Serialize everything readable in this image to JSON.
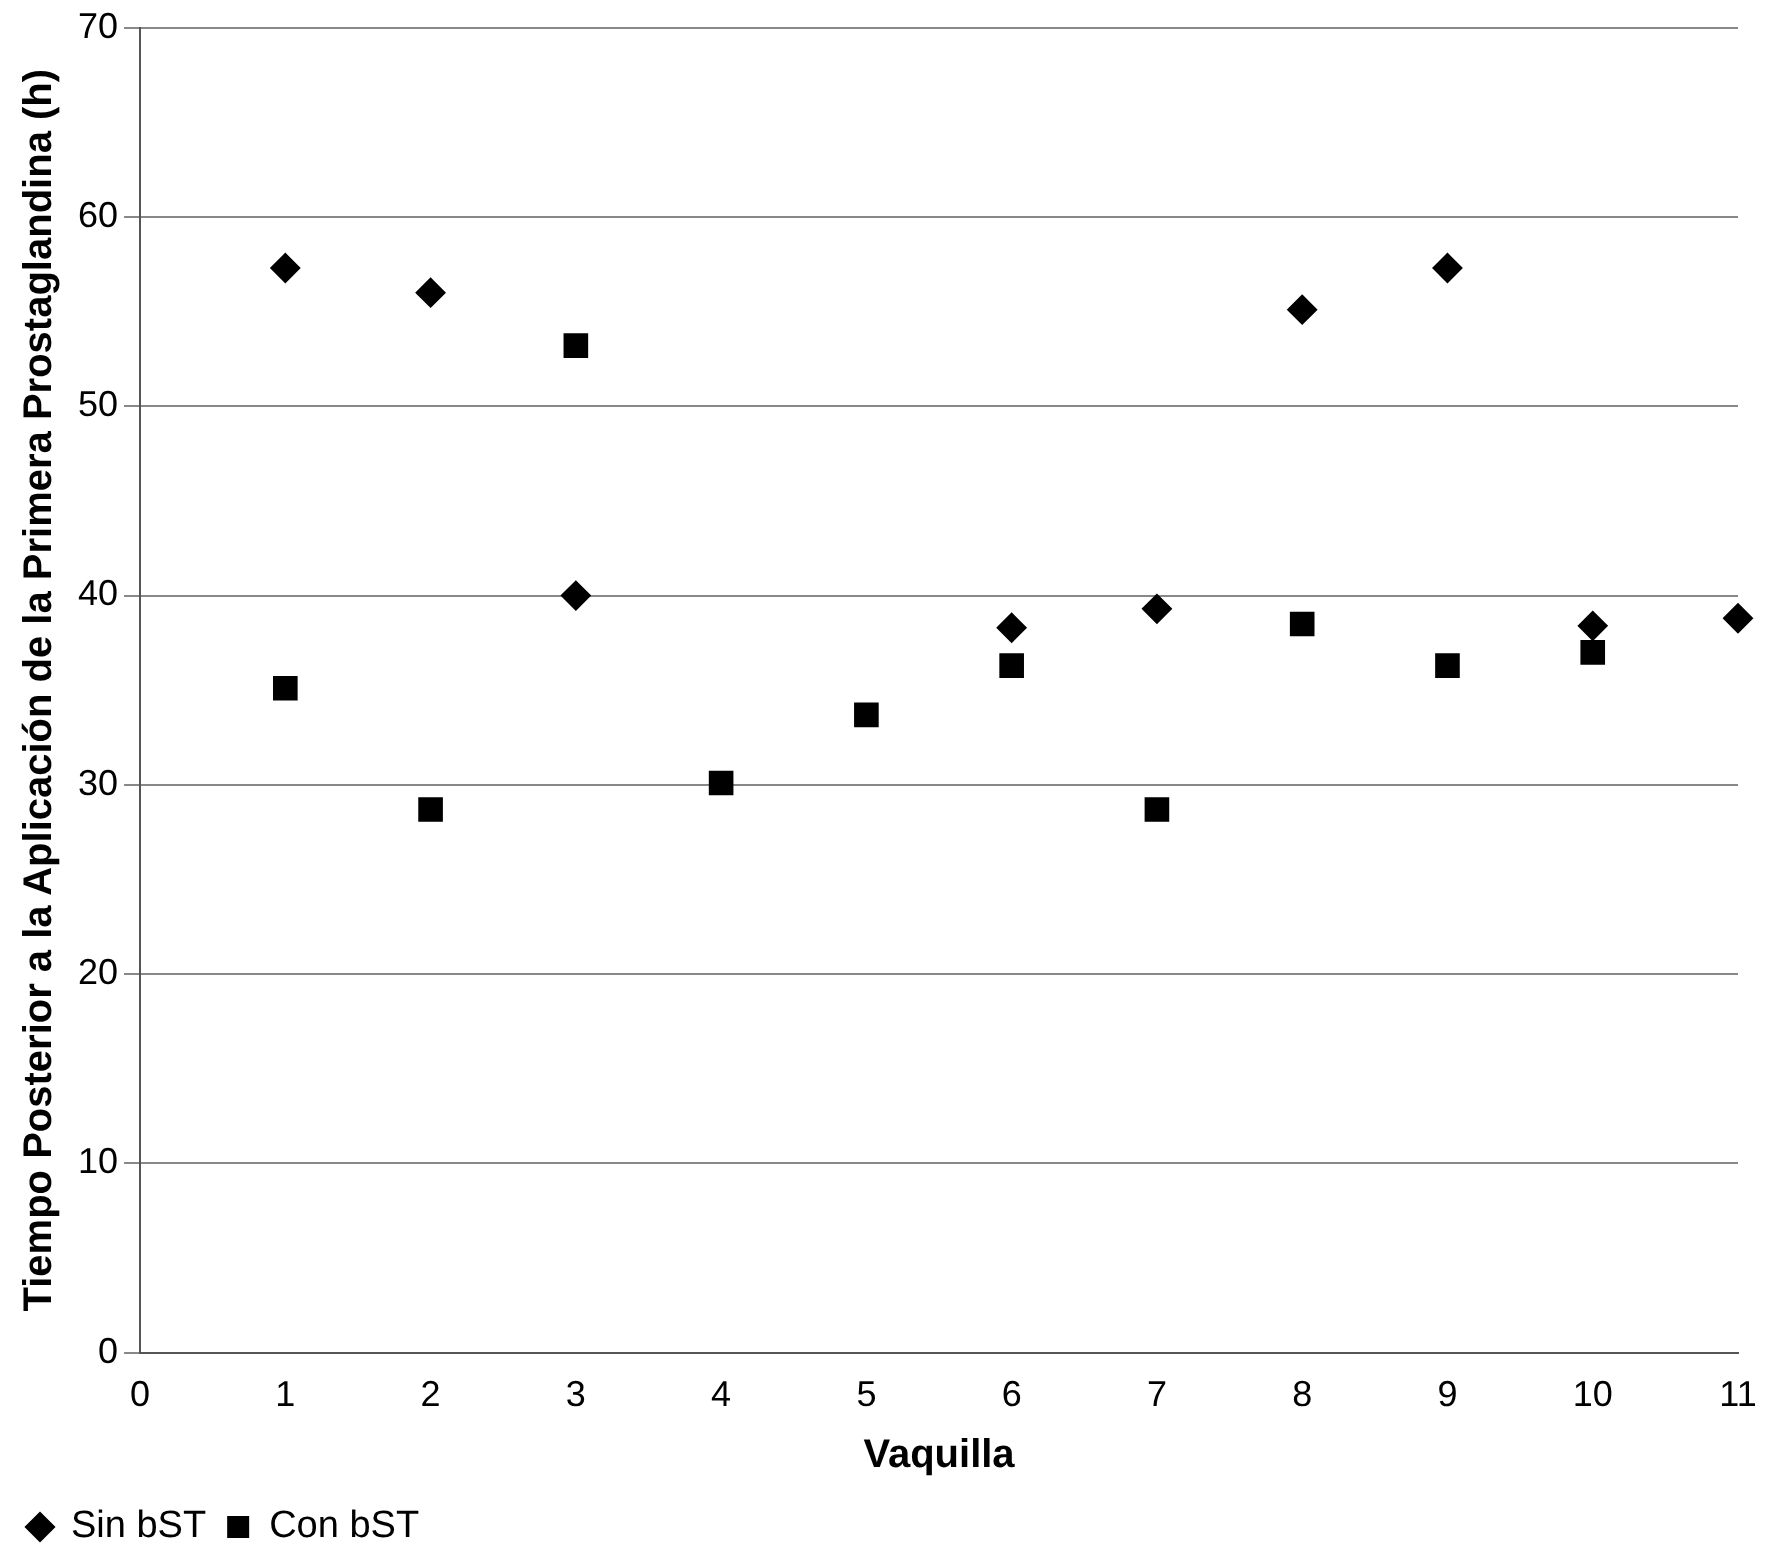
{
  "chart_data": {
    "type": "scatter",
    "xlabel": "Vaquilla",
    "ylabel": "Tiempo Posterior a la Aplicación de la Primera Prostaglandina (h)",
    "xlim": [
      0,
      11
    ],
    "xticks": [
      0,
      1,
      2,
      3,
      4,
      5,
      6,
      7,
      8,
      9,
      10,
      11
    ],
    "ylim": [
      0,
      70
    ],
    "yticks": [
      0,
      10,
      20,
      30,
      40,
      50,
      60,
      70
    ],
    "grid": "y",
    "legend": "bottom left",
    "series": [
      {
        "name": "Sin bST",
        "color": "#000000",
        "marker": "diamond",
        "x": [
          1,
          2,
          3,
          6,
          7,
          8,
          9,
          10,
          11
        ],
        "values": [
          57.3,
          56.0,
          40.0,
          38.3,
          39.3,
          55.1,
          57.3,
          38.4,
          38.8
        ]
      },
      {
        "name": "Con bST",
        "color": "#000000",
        "marker": "square",
        "x": [
          1,
          2,
          3,
          4,
          5,
          6,
          7,
          8,
          9,
          10
        ],
        "values": [
          35.1,
          28.7,
          53.2,
          30.1,
          33.7,
          36.3,
          28.7,
          38.5,
          36.3,
          37.0
        ]
      }
    ]
  }
}
